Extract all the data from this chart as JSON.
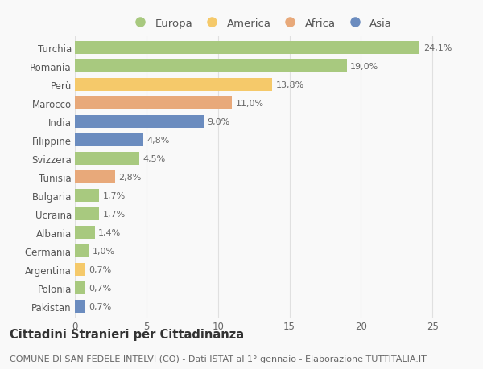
{
  "countries": [
    "Turchia",
    "Romania",
    "Perù",
    "Marocco",
    "India",
    "Filippine",
    "Svizzera",
    "Tunisia",
    "Bulgaria",
    "Ucraina",
    "Albania",
    "Germania",
    "Argentina",
    "Polonia",
    "Pakistan"
  ],
  "values": [
    24.1,
    19.0,
    13.8,
    11.0,
    9.0,
    4.8,
    4.5,
    2.8,
    1.7,
    1.7,
    1.4,
    1.0,
    0.7,
    0.7,
    0.7
  ],
  "labels": [
    "24,1%",
    "19,0%",
    "13,8%",
    "11,0%",
    "9,0%",
    "4,8%",
    "4,5%",
    "2,8%",
    "1,7%",
    "1,7%",
    "1,4%",
    "1,0%",
    "0,7%",
    "0,7%",
    "0,7%"
  ],
  "continents": [
    "Europa",
    "Europa",
    "America",
    "Africa",
    "Asia",
    "Asia",
    "Europa",
    "Africa",
    "Europa",
    "Europa",
    "Europa",
    "Europa",
    "America",
    "Europa",
    "Asia"
  ],
  "colors": {
    "Europa": "#a8c97f",
    "America": "#f5c96a",
    "Africa": "#e8a97a",
    "Asia": "#6b8cbf"
  },
  "legend_order": [
    "Europa",
    "America",
    "Africa",
    "Asia"
  ],
  "title": "Cittadini Stranieri per Cittadinanza",
  "subtitle": "COMUNE DI SAN FEDELE INTELVI (CO) - Dati ISTAT al 1° gennaio - Elaborazione TUTTITALIA.IT",
  "xlim": [
    0,
    26
  ],
  "xticks": [
    0,
    5,
    10,
    15,
    20,
    25
  ],
  "background_color": "#f9f9f9",
  "grid_color": "#e0e0e0",
  "bar_height": 0.68,
  "title_fontsize": 10.5,
  "subtitle_fontsize": 8,
  "label_fontsize": 8,
  "tick_fontsize": 8.5,
  "legend_fontsize": 9.5
}
